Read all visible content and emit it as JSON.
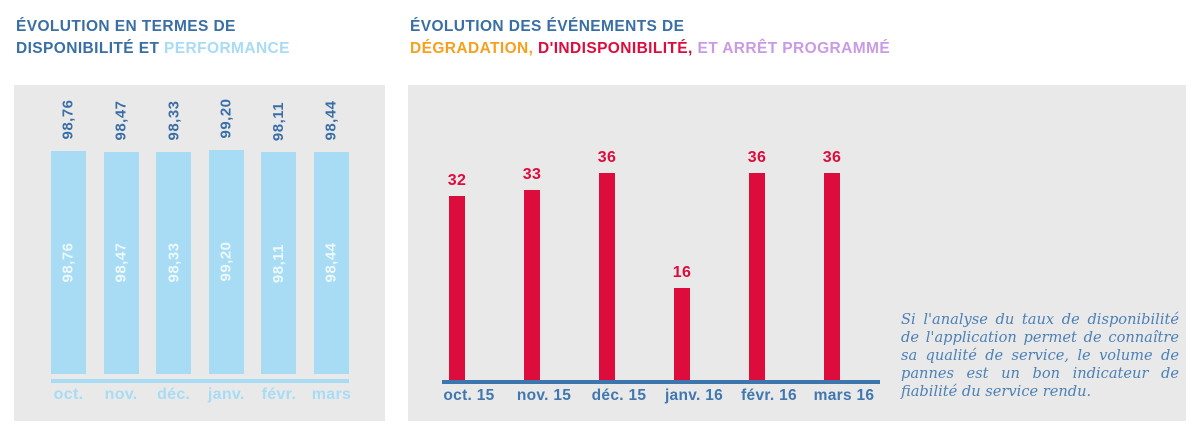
{
  "titles": {
    "availability": {
      "line1": "ÉVOLUTION EN TERMES DE",
      "line2_dark": "DISPONIBILITÉ ET ",
      "line2_light": "PERFORMANCE"
    },
    "events": {
      "line1": "ÉVOLUTION DES ÉVÉNEMENTS DE",
      "line2_orange": "DÉGRADATION,",
      "line2_red": " D'INDISPONIBILITÉ,",
      "line2_purple": " ET ARRÊT PROGRAMMÉ"
    }
  },
  "chart_data": [
    {
      "type": "bar",
      "title": "ÉVOLUTION EN TERMES DE DISPONIBILITÉ ET PERFORMANCE",
      "categories": [
        "oct.",
        "nov.",
        "déc.",
        "janv.",
        "févr.",
        "mars"
      ],
      "values": [
        98.76,
        98.47,
        98.33,
        99.2,
        98.11,
        98.44
      ],
      "value_labels": [
        "98,76",
        "98,47",
        "98,33",
        "99,20",
        "98,11",
        "98,44"
      ],
      "ylim": [
        0,
        100
      ],
      "bar_color": "#A7DCF4",
      "value_label_color_top": "#3A6FA6",
      "value_label_color_inside": "rgba(255,255,255,0.8)",
      "axis_color": "#A7DCF4",
      "category_label_color": "#A7DCF4",
      "grid": false,
      "legend": "none",
      "value_labels_rotated": true
    },
    {
      "type": "bar",
      "title": "ÉVOLUTION DES ÉVÉNEMENTS DE DÉGRADATION, D'INDISPONIBILITÉ, ET ARRÊT PROGRAMMÉ",
      "categories": [
        "oct. 15",
        "nov. 15",
        "déc. 15",
        "janv. 16",
        "févr. 16",
        "mars 16"
      ],
      "values": [
        32,
        33,
        36,
        16,
        36,
        36
      ],
      "value_labels": [
        "32",
        "33",
        "36",
        "16",
        "36",
        "36"
      ],
      "ylim": [
        0,
        40
      ],
      "bar_color": "#DC0C3C",
      "value_label_color": "#DC0C3C",
      "axis_color": "#3D76AD",
      "category_label_color": "#4077AE",
      "grid": false,
      "legend": "none",
      "value_labels_rotated": false
    }
  ],
  "note": {
    "text": "Si l'analyse du taux de disponibilité de l'application permet de connaître sa qualité de service, le volume de pannes est un bon indicateur de fiabilité du service rendu."
  },
  "colors": {
    "title_dark_blue": "#3A6FA6",
    "light_blue": "#A7DCF4",
    "orange": "#F7A01F",
    "red": "#DC0C3C",
    "purple": "#C89BE4",
    "axis_steel_blue": "#3D76AD",
    "note_blue": "#4D80B5",
    "panel_gray": "#E9E9EA"
  }
}
